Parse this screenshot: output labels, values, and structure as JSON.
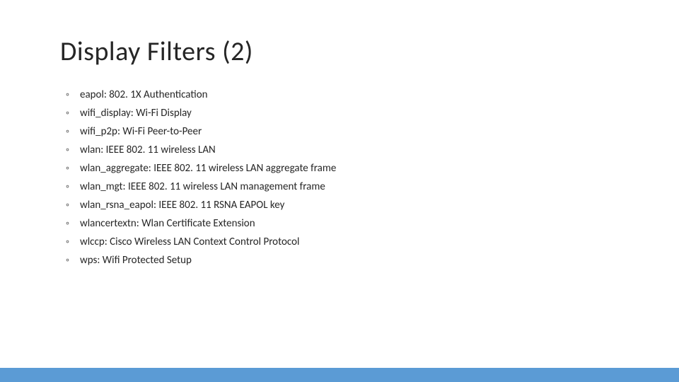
{
  "slide": {
    "title": "Display Filters (2)",
    "title_color": "#262626",
    "title_fontsize": 38,
    "title_fontweight": 300,
    "background_color": "#ffffff",
    "bullet_char": "◦",
    "bullet_color": "#595959",
    "item_color": "#262626",
    "item_fontsize": 15,
    "items": [
      "eapol: 802. 1X Authentication",
      "wifi_display: Wi-Fi Display",
      "wifi_p2p: Wi-Fi Peer-to-Peer",
      "wlan: IEEE 802. 11 wireless LAN",
      "wlan_aggregate: IEEE 802. 11 wireless LAN aggregate frame",
      "wlan_mgt: IEEE 802. 11 wireless LAN management frame",
      "wlan_rsna_eapol: IEEE 802. 11 RSNA EAPOL key",
      "wlancertextn: Wlan Certificate Extension",
      "wlccp: Cisco Wireless LAN Context Control Protocol",
      "wps: Wifi Protected Setup"
    ],
    "bottom_bar_color": "#5b9bd5"
  }
}
